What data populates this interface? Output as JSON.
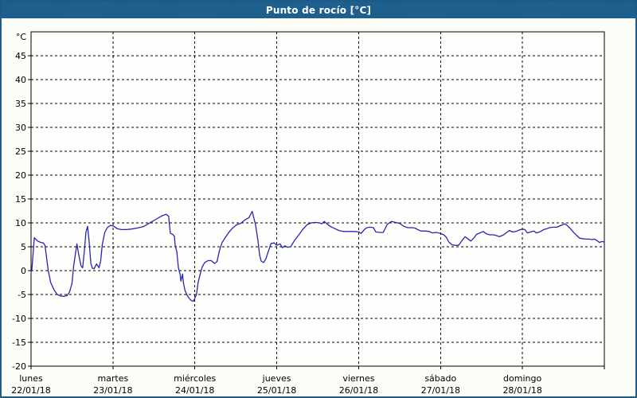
{
  "window": {
    "title": "Punto de rocío [°C]"
  },
  "colors": {
    "frame": "#1c5a88",
    "titlebar": "#1f6190",
    "titletext": "#ffffff",
    "bg": "#fbfdf6",
    "plotbg": "#fefefc",
    "line": "#2626b2",
    "ink": "#000000"
  },
  "chart_data": {
    "type": "line",
    "title": "Punto de rocío [°C]",
    "y_unit_label": "°C",
    "ylabel": "",
    "xlabel": "",
    "ylim": [
      -20,
      50
    ],
    "xlim_days": [
      0,
      7
    ],
    "grid": "dashed",
    "legend": "none",
    "y_ticks": [
      45,
      40,
      35,
      30,
      25,
      20,
      15,
      10,
      5,
      0,
      -5,
      -10,
      -15,
      -20
    ],
    "y_gridlines": [
      45,
      40,
      35,
      30,
      25,
      20,
      15,
      10,
      5,
      0,
      -5,
      -10,
      -15
    ],
    "x_ticks": [
      {
        "day": 0,
        "name": "lunes",
        "date": "22/01/18"
      },
      {
        "day": 1,
        "name": "martes",
        "date": "23/01/18"
      },
      {
        "day": 2,
        "name": "miércoles",
        "date": "24/01/18"
      },
      {
        "day": 3,
        "name": "jueves",
        "date": "25/01/18"
      },
      {
        "day": 4,
        "name": "viernes",
        "date": "26/01/18"
      },
      {
        "day": 5,
        "name": "sábado",
        "date": "27/01/18"
      },
      {
        "day": 6,
        "name": "domingo",
        "date": "28/01/18"
      }
    ],
    "series": [
      {
        "name": "Punto de rocío",
        "color": "#2626b2",
        "x_unit": "days_since_2018-01-22",
        "y_unit": "°C",
        "points": [
          [
            0.01,
            0.2
          ],
          [
            0.04,
            6.9
          ],
          [
            0.08,
            6.2
          ],
          [
            0.12,
            5.9
          ],
          [
            0.15,
            5.8
          ],
          [
            0.17,
            5.3
          ],
          [
            0.21,
            0.0
          ],
          [
            0.24,
            -2.5
          ],
          [
            0.28,
            -4.0
          ],
          [
            0.32,
            -5.0
          ],
          [
            0.36,
            -5.3
          ],
          [
            0.4,
            -5.4
          ],
          [
            0.44,
            -5.2
          ],
          [
            0.47,
            -4.5
          ],
          [
            0.5,
            -2.7
          ],
          [
            0.52,
            1.0
          ],
          [
            0.56,
            5.6
          ],
          [
            0.58,
            3.5
          ],
          [
            0.61,
            1.0
          ],
          [
            0.63,
            0.6
          ],
          [
            0.65,
            4.0
          ],
          [
            0.67,
            8.0
          ],
          [
            0.69,
            9.3
          ],
          [
            0.71,
            6.0
          ],
          [
            0.73,
            1.5
          ],
          [
            0.75,
            0.5
          ],
          [
            0.77,
            0.4
          ],
          [
            0.8,
            1.4
          ],
          [
            0.83,
            0.6
          ],
          [
            0.85,
            2.0
          ],
          [
            0.87,
            5.5
          ],
          [
            0.9,
            8.0
          ],
          [
            0.93,
            9.0
          ],
          [
            0.97,
            9.5
          ],
          [
            1.01,
            9.3
          ],
          [
            1.05,
            8.8
          ],
          [
            1.1,
            8.6
          ],
          [
            1.16,
            8.6
          ],
          [
            1.22,
            8.7
          ],
          [
            1.29,
            8.9
          ],
          [
            1.37,
            9.2
          ],
          [
            1.43,
            9.8
          ],
          [
            1.49,
            10.4
          ],
          [
            1.55,
            11.0
          ],
          [
            1.6,
            11.5
          ],
          [
            1.65,
            11.8
          ],
          [
            1.68,
            11.4
          ],
          [
            1.7,
            7.8
          ],
          [
            1.73,
            7.6
          ],
          [
            1.75,
            7.2
          ],
          [
            1.76,
            5.3
          ],
          [
            1.78,
            3.9
          ],
          [
            1.79,
            2.2
          ],
          [
            1.8,
            0.6
          ],
          [
            1.82,
            -0.8
          ],
          [
            1.83,
            -2.2
          ],
          [
            1.85,
            -0.7
          ],
          [
            1.86,
            -2.5
          ],
          [
            1.88,
            -4.2
          ],
          [
            1.91,
            -5.3
          ],
          [
            1.94,
            -6.0
          ],
          [
            1.96,
            -6.3
          ],
          [
            1.98,
            -6.4
          ],
          [
            2.0,
            -5.8
          ],
          [
            2.02,
            -5.0
          ],
          [
            2.04,
            -2.5
          ],
          [
            2.07,
            -0.4
          ],
          [
            2.09,
            0.8
          ],
          [
            2.12,
            1.7
          ],
          [
            2.16,
            2.1
          ],
          [
            2.2,
            2.1
          ],
          [
            2.24,
            1.5
          ],
          [
            2.27,
            1.9
          ],
          [
            2.3,
            4.2
          ],
          [
            2.33,
            5.8
          ],
          [
            2.37,
            6.9
          ],
          [
            2.41,
            7.9
          ],
          [
            2.46,
            8.9
          ],
          [
            2.51,
            9.6
          ],
          [
            2.56,
            9.9
          ],
          [
            2.61,
            10.6
          ],
          [
            2.66,
            11.1
          ],
          [
            2.7,
            12.4
          ],
          [
            2.74,
            9.7
          ],
          [
            2.77,
            6.4
          ],
          [
            2.79,
            3.3
          ],
          [
            2.81,
            2.0
          ],
          [
            2.84,
            1.7
          ],
          [
            2.87,
            2.6
          ],
          [
            2.9,
            4.2
          ],
          [
            2.93,
            5.7
          ],
          [
            2.97,
            5.8
          ],
          [
            3.0,
            5.3
          ],
          [
            3.04,
            5.6
          ],
          [
            3.07,
            4.8
          ],
          [
            3.1,
            5.2
          ],
          [
            3.13,
            4.9
          ],
          [
            3.17,
            5.0
          ],
          [
            3.22,
            6.4
          ],
          [
            3.27,
            7.5
          ],
          [
            3.32,
            8.7
          ],
          [
            3.37,
            9.6
          ],
          [
            3.42,
            10.0
          ],
          [
            3.47,
            10.1
          ],
          [
            3.52,
            10.0
          ],
          [
            3.55,
            9.8
          ],
          [
            3.58,
            10.3
          ],
          [
            3.62,
            9.7
          ],
          [
            3.66,
            9.2
          ],
          [
            3.71,
            8.8
          ],
          [
            3.76,
            8.4
          ],
          [
            3.81,
            8.2
          ],
          [
            3.88,
            8.2
          ],
          [
            3.95,
            8.2
          ],
          [
            4.0,
            8.1
          ],
          [
            4.03,
            7.8
          ],
          [
            4.07,
            8.6
          ],
          [
            4.1,
            9.0
          ],
          [
            4.14,
            9.1
          ],
          [
            4.18,
            9.0
          ],
          [
            4.21,
            8.1
          ],
          [
            4.26,
            8.0
          ],
          [
            4.3,
            8.0
          ],
          [
            4.35,
            9.7
          ],
          [
            4.4,
            10.3
          ],
          [
            4.45,
            10.1
          ],
          [
            4.5,
            9.9
          ],
          [
            4.55,
            9.3
          ],
          [
            4.6,
            9.0
          ],
          [
            4.65,
            9.0
          ],
          [
            4.69,
            8.9
          ],
          [
            4.72,
            8.6
          ],
          [
            4.76,
            8.3
          ],
          [
            4.81,
            8.3
          ],
          [
            4.86,
            8.2
          ],
          [
            4.9,
            7.9
          ],
          [
            4.95,
            8.0
          ],
          [
            5.0,
            7.8
          ],
          [
            5.04,
            7.5
          ],
          [
            5.07,
            7.0
          ],
          [
            5.1,
            6.0
          ],
          [
            5.14,
            5.4
          ],
          [
            5.18,
            5.3
          ],
          [
            5.22,
            5.3
          ],
          [
            5.27,
            6.5
          ],
          [
            5.3,
            7.1
          ],
          [
            5.33,
            6.7
          ],
          [
            5.37,
            6.2
          ],
          [
            5.41,
            6.9
          ],
          [
            5.44,
            7.6
          ],
          [
            5.48,
            7.9
          ],
          [
            5.52,
            8.2
          ],
          [
            5.56,
            7.7
          ],
          [
            5.6,
            7.5
          ],
          [
            5.65,
            7.5
          ],
          [
            5.69,
            7.3
          ],
          [
            5.72,
            7.1
          ],
          [
            5.77,
            7.5
          ],
          [
            5.8,
            7.9
          ],
          [
            5.84,
            8.4
          ],
          [
            5.88,
            8.1
          ],
          [
            5.92,
            8.2
          ],
          [
            5.96,
            8.5
          ],
          [
            6.0,
            8.7
          ],
          [
            6.03,
            8.6
          ],
          [
            6.06,
            7.9
          ],
          [
            6.1,
            8.1
          ],
          [
            6.14,
            8.3
          ],
          [
            6.17,
            7.9
          ],
          [
            6.21,
            8.1
          ],
          [
            6.26,
            8.6
          ],
          [
            6.3,
            8.8
          ],
          [
            6.33,
            9.0
          ],
          [
            6.38,
            9.1
          ],
          [
            6.42,
            9.1
          ],
          [
            6.46,
            9.4
          ],
          [
            6.49,
            9.6
          ],
          [
            6.52,
            9.8
          ],
          [
            6.55,
            9.4
          ],
          [
            6.58,
            8.9
          ],
          [
            6.62,
            8.1
          ],
          [
            6.66,
            7.4
          ],
          [
            6.7,
            6.8
          ],
          [
            6.73,
            6.7
          ],
          [
            6.78,
            6.6
          ],
          [
            6.82,
            6.6
          ],
          [
            6.85,
            6.5
          ],
          [
            6.88,
            6.6
          ],
          [
            6.91,
            6.3
          ],
          [
            6.94,
            5.9
          ],
          [
            6.97,
            6.1
          ],
          [
            7.0,
            6.0
          ]
        ]
      }
    ]
  }
}
